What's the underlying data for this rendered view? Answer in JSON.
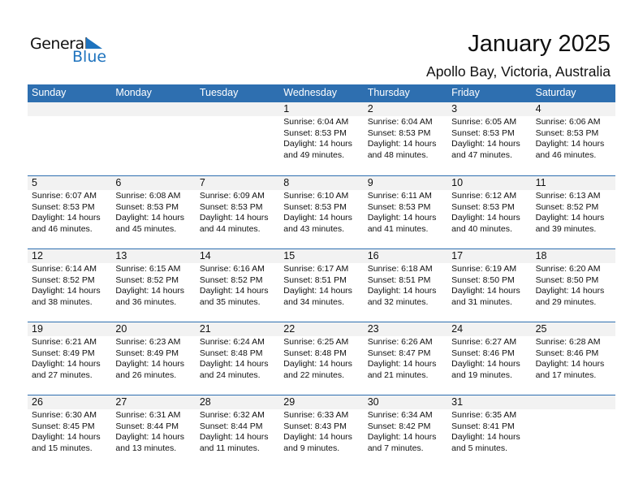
{
  "logo": {
    "line1": "General",
    "line2": "Blue",
    "accent": "#1e73be"
  },
  "title": "January 2025",
  "location": "Apollo Bay, Victoria, Australia",
  "colors": {
    "header": "#2e6fb0",
    "daterow": "#f2f2f2"
  },
  "weekdays": [
    "Sunday",
    "Monday",
    "Tuesday",
    "Wednesday",
    "Thursday",
    "Friday",
    "Saturday"
  ],
  "weeks": [
    [
      null,
      null,
      null,
      {
        "day": "1",
        "sunrise": "Sunrise: 6:04 AM",
        "sunset": "Sunset: 8:53 PM",
        "daylight1": "Daylight: 14 hours",
        "daylight2": "and 49 minutes."
      },
      {
        "day": "2",
        "sunrise": "Sunrise: 6:04 AM",
        "sunset": "Sunset: 8:53 PM",
        "daylight1": "Daylight: 14 hours",
        "daylight2": "and 48 minutes."
      },
      {
        "day": "3",
        "sunrise": "Sunrise: 6:05 AM",
        "sunset": "Sunset: 8:53 PM",
        "daylight1": "Daylight: 14 hours",
        "daylight2": "and 47 minutes."
      },
      {
        "day": "4",
        "sunrise": "Sunrise: 6:06 AM",
        "sunset": "Sunset: 8:53 PM",
        "daylight1": "Daylight: 14 hours",
        "daylight2": "and 46 minutes."
      }
    ],
    [
      {
        "day": "5",
        "sunrise": "Sunrise: 6:07 AM",
        "sunset": "Sunset: 8:53 PM",
        "daylight1": "Daylight: 14 hours",
        "daylight2": "and 46 minutes."
      },
      {
        "day": "6",
        "sunrise": "Sunrise: 6:08 AM",
        "sunset": "Sunset: 8:53 PM",
        "daylight1": "Daylight: 14 hours",
        "daylight2": "and 45 minutes."
      },
      {
        "day": "7",
        "sunrise": "Sunrise: 6:09 AM",
        "sunset": "Sunset: 8:53 PM",
        "daylight1": "Daylight: 14 hours",
        "daylight2": "and 44 minutes."
      },
      {
        "day": "8",
        "sunrise": "Sunrise: 6:10 AM",
        "sunset": "Sunset: 8:53 PM",
        "daylight1": "Daylight: 14 hours",
        "daylight2": "and 43 minutes."
      },
      {
        "day": "9",
        "sunrise": "Sunrise: 6:11 AM",
        "sunset": "Sunset: 8:53 PM",
        "daylight1": "Daylight: 14 hours",
        "daylight2": "and 41 minutes."
      },
      {
        "day": "10",
        "sunrise": "Sunrise: 6:12 AM",
        "sunset": "Sunset: 8:53 PM",
        "daylight1": "Daylight: 14 hours",
        "daylight2": "and 40 minutes."
      },
      {
        "day": "11",
        "sunrise": "Sunrise: 6:13 AM",
        "sunset": "Sunset: 8:52 PM",
        "daylight1": "Daylight: 14 hours",
        "daylight2": "and 39 minutes."
      }
    ],
    [
      {
        "day": "12",
        "sunrise": "Sunrise: 6:14 AM",
        "sunset": "Sunset: 8:52 PM",
        "daylight1": "Daylight: 14 hours",
        "daylight2": "and 38 minutes."
      },
      {
        "day": "13",
        "sunrise": "Sunrise: 6:15 AM",
        "sunset": "Sunset: 8:52 PM",
        "daylight1": "Daylight: 14 hours",
        "daylight2": "and 36 minutes."
      },
      {
        "day": "14",
        "sunrise": "Sunrise: 6:16 AM",
        "sunset": "Sunset: 8:52 PM",
        "daylight1": "Daylight: 14 hours",
        "daylight2": "and 35 minutes."
      },
      {
        "day": "15",
        "sunrise": "Sunrise: 6:17 AM",
        "sunset": "Sunset: 8:51 PM",
        "daylight1": "Daylight: 14 hours",
        "daylight2": "and 34 minutes."
      },
      {
        "day": "16",
        "sunrise": "Sunrise: 6:18 AM",
        "sunset": "Sunset: 8:51 PM",
        "daylight1": "Daylight: 14 hours",
        "daylight2": "and 32 minutes."
      },
      {
        "day": "17",
        "sunrise": "Sunrise: 6:19 AM",
        "sunset": "Sunset: 8:50 PM",
        "daylight1": "Daylight: 14 hours",
        "daylight2": "and 31 minutes."
      },
      {
        "day": "18",
        "sunrise": "Sunrise: 6:20 AM",
        "sunset": "Sunset: 8:50 PM",
        "daylight1": "Daylight: 14 hours",
        "daylight2": "and 29 minutes."
      }
    ],
    [
      {
        "day": "19",
        "sunrise": "Sunrise: 6:21 AM",
        "sunset": "Sunset: 8:49 PM",
        "daylight1": "Daylight: 14 hours",
        "daylight2": "and 27 minutes."
      },
      {
        "day": "20",
        "sunrise": "Sunrise: 6:23 AM",
        "sunset": "Sunset: 8:49 PM",
        "daylight1": "Daylight: 14 hours",
        "daylight2": "and 26 minutes."
      },
      {
        "day": "21",
        "sunrise": "Sunrise: 6:24 AM",
        "sunset": "Sunset: 8:48 PM",
        "daylight1": "Daylight: 14 hours",
        "daylight2": "and 24 minutes."
      },
      {
        "day": "22",
        "sunrise": "Sunrise: 6:25 AM",
        "sunset": "Sunset: 8:48 PM",
        "daylight1": "Daylight: 14 hours",
        "daylight2": "and 22 minutes."
      },
      {
        "day": "23",
        "sunrise": "Sunrise: 6:26 AM",
        "sunset": "Sunset: 8:47 PM",
        "daylight1": "Daylight: 14 hours",
        "daylight2": "and 21 minutes."
      },
      {
        "day": "24",
        "sunrise": "Sunrise: 6:27 AM",
        "sunset": "Sunset: 8:46 PM",
        "daylight1": "Daylight: 14 hours",
        "daylight2": "and 19 minutes."
      },
      {
        "day": "25",
        "sunrise": "Sunrise: 6:28 AM",
        "sunset": "Sunset: 8:46 PM",
        "daylight1": "Daylight: 14 hours",
        "daylight2": "and 17 minutes."
      }
    ],
    [
      {
        "day": "26",
        "sunrise": "Sunrise: 6:30 AM",
        "sunset": "Sunset: 8:45 PM",
        "daylight1": "Daylight: 14 hours",
        "daylight2": "and 15 minutes."
      },
      {
        "day": "27",
        "sunrise": "Sunrise: 6:31 AM",
        "sunset": "Sunset: 8:44 PM",
        "daylight1": "Daylight: 14 hours",
        "daylight2": "and 13 minutes."
      },
      {
        "day": "28",
        "sunrise": "Sunrise: 6:32 AM",
        "sunset": "Sunset: 8:44 PM",
        "daylight1": "Daylight: 14 hours",
        "daylight2": "and 11 minutes."
      },
      {
        "day": "29",
        "sunrise": "Sunrise: 6:33 AM",
        "sunset": "Sunset: 8:43 PM",
        "daylight1": "Daylight: 14 hours",
        "daylight2": "and 9 minutes."
      },
      {
        "day": "30",
        "sunrise": "Sunrise: 6:34 AM",
        "sunset": "Sunset: 8:42 PM",
        "daylight1": "Daylight: 14 hours",
        "daylight2": "and 7 minutes."
      },
      {
        "day": "31",
        "sunrise": "Sunrise: 6:35 AM",
        "sunset": "Sunset: 8:41 PM",
        "daylight1": "Daylight: 14 hours",
        "daylight2": "and 5 minutes."
      },
      null
    ]
  ]
}
